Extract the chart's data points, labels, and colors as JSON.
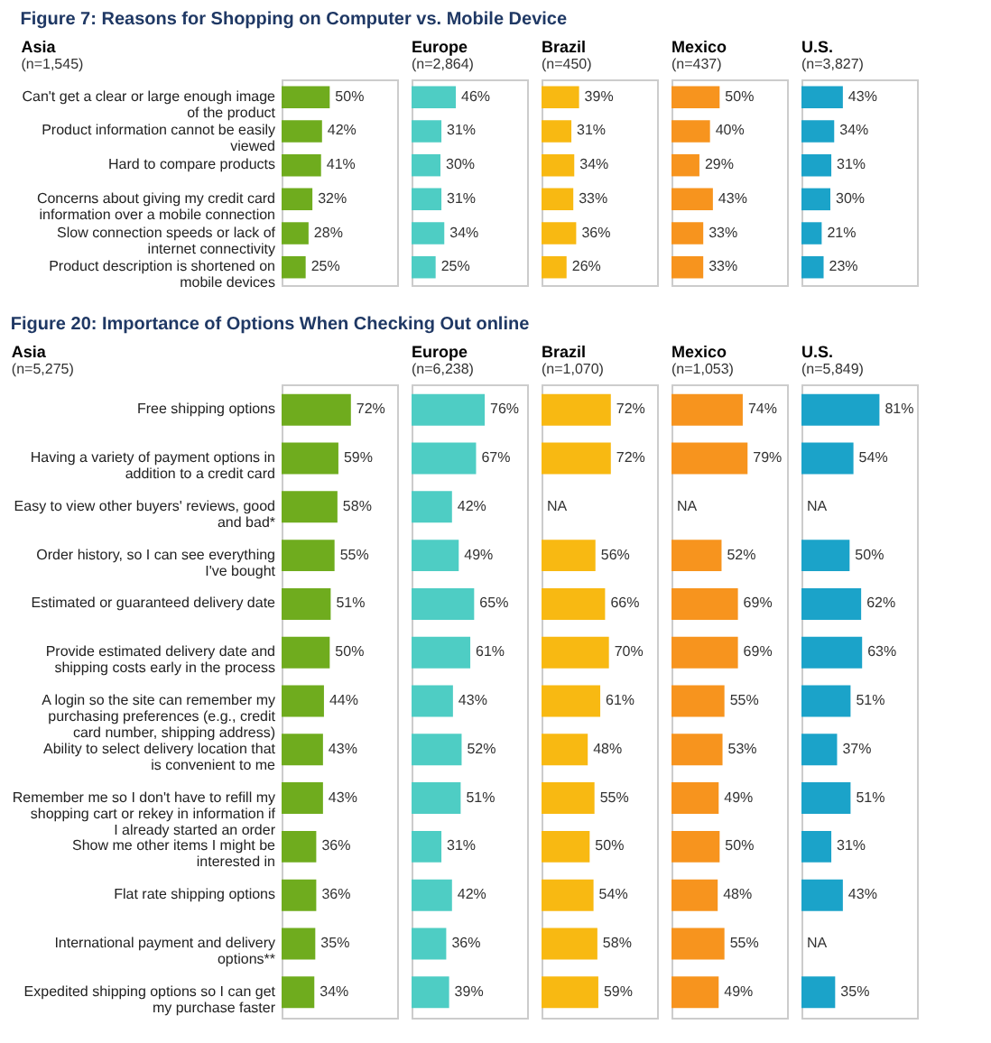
{
  "chart_data": [
    {
      "type": "bar",
      "orientation": "horizontal",
      "annotations": [
        "Figure 7: Reasons for Shopping on Computer vs. Mobile Device"
      ],
      "title": "Asia",
      "subtitle": "(n=1,545)",
      "tick_labels": "y",
      "xlim": [
        0,
        120
      ],
      "color": "#6fac1e",
      "categories": [
        "Can't get a clear or large enough image of the product",
        "Product information cannot be easily viewed",
        "Hard to compare products",
        "Concerns about giving my credit card information over a mobile connection",
        "Slow connection speeds or lack of internet connectivity",
        "Product description is shortened on mobile devices"
      ],
      "values": [
        50,
        42,
        41,
        32,
        28,
        25
      ],
      "value_labels": [
        "50%",
        "42%",
        "41%",
        "32%",
        "28%",
        "25%"
      ]
    },
    {
      "type": "bar",
      "orientation": "horizontal",
      "title": "Europe",
      "subtitle": "(n=2,864)",
      "tick_labels": false,
      "xlim": [
        0,
        120
      ],
      "color": "#4ecdc4",
      "categories": [
        null,
        null,
        null,
        null,
        null,
        null
      ],
      "values": [
        46,
        31,
        30,
        31,
        34,
        25
      ],
      "value_labels": [
        "46%",
        "31%",
        "30%",
        "31%",
        "34%",
        "25%"
      ]
    },
    {
      "type": "bar",
      "orientation": "horizontal",
      "title": "Brazil",
      "subtitle": "(n=450)",
      "tick_labels": false,
      "xlim": [
        0,
        120
      ],
      "color": "#f8b912",
      "categories": [
        null,
        null,
        null,
        null,
        null,
        null
      ],
      "values": [
        39,
        31,
        34,
        33,
        36,
        26
      ],
      "value_labels": [
        "39%",
        "31%",
        "34%",
        "33%",
        "36%",
        "26%"
      ]
    },
    {
      "type": "bar",
      "orientation": "horizontal",
      "title": "Mexico",
      "subtitle": "(n=437)",
      "tick_labels": false,
      "xlim": [
        0,
        120
      ],
      "color": "#f7941e",
      "categories": [
        null,
        null,
        null,
        null,
        null,
        null
      ],
      "values": [
        50,
        40,
        29,
        43,
        33,
        33
      ],
      "value_labels": [
        "50%",
        "40%",
        "29%",
        "43%",
        "33%",
        "33%"
      ]
    },
    {
      "type": "bar",
      "orientation": "horizontal",
      "title": "U.S.",
      "subtitle": "(n=3,827)",
      "tick_labels": false,
      "xlim": [
        0,
        120
      ],
      "color": "#1ba3c9",
      "categories": [
        null,
        null,
        null,
        null,
        null,
        null
      ],
      "values": [
        43,
        34,
        31,
        30,
        21,
        23
      ],
      "value_labels": [
        "43%",
        "34%",
        "31%",
        "30%",
        "21%",
        "23%"
      ]
    },
    {
      "type": "bar",
      "orientation": "horizontal",
      "annotations": [
        "Figure 20: Importance of Options When Checking Out online"
      ],
      "title": "Asia",
      "subtitle": "(n=5,275)",
      "tick_labels": "y",
      "xlim": [
        0,
        120
      ],
      "color": "#6fac1e",
      "categories": [
        "Free shipping options",
        "Having a variety of payment options in addition to a credit card",
        "Easy to view other buyers' reviews, good and bad*",
        "Order history, so I can see everything I've bought",
        "Estimated or guaranteed delivery date",
        "Provide estimated delivery date and shipping costs early in the process",
        "A login so the site can remember my purchasing preferences (e.g., credit card number, shipping address)",
        "Ability to select delivery location that is convenient to me",
        "Remember me so I don't have to refill my shopping cart or rekey in information if I already started an order",
        "Show me other items I might be interested in",
        "Flat rate shipping options",
        "International payment and delivery options**",
        "Expedited shipping options so I can get my purchase faster"
      ],
      "values": [
        72,
        59,
        58,
        55,
        51,
        50,
        44,
        43,
        43,
        36,
        36,
        35,
        34
      ],
      "value_labels": [
        "72%",
        "59%",
        "58%",
        "55%",
        "51%",
        "50%",
        "44%",
        "43%",
        "43%",
        "36%",
        "36%",
        "35%",
        "34%"
      ]
    },
    {
      "type": "bar",
      "orientation": "horizontal",
      "title": "Europe",
      "subtitle": "(n=6,238)",
      "tick_labels": false,
      "xlim": [
        0,
        120
      ],
      "color": "#4ecdc4",
      "categories": [
        null,
        null,
        null,
        null,
        null,
        null,
        null,
        null,
        null,
        null,
        null,
        null,
        null
      ],
      "values": [
        76,
        67,
        42,
        49,
        65,
        61,
        43,
        52,
        51,
        31,
        42,
        36,
        39
      ],
      "value_labels": [
        "76%",
        "67%",
        "42%",
        "49%",
        "65%",
        "61%",
        "43%",
        "52%",
        "51%",
        "31%",
        "42%",
        "36%",
        "39%"
      ]
    },
    {
      "type": "bar",
      "orientation": "horizontal",
      "title": "Brazil",
      "subtitle": "(n=1,070)",
      "tick_labels": false,
      "xlim": [
        0,
        120
      ],
      "color": "#f8b912",
      "categories": [
        null,
        null,
        null,
        null,
        null,
        null,
        null,
        null,
        null,
        null,
        null,
        null,
        null
      ],
      "values": [
        72,
        72,
        null,
        56,
        66,
        70,
        61,
        48,
        55,
        50,
        54,
        58,
        59
      ],
      "value_labels": [
        "72%",
        "72%",
        "NA",
        "56%",
        "66%",
        "70%",
        "61%",
        "48%",
        "55%",
        "50%",
        "54%",
        "58%",
        "59%"
      ]
    },
    {
      "type": "bar",
      "orientation": "horizontal",
      "title": "Mexico",
      "subtitle": "(n=1,053)",
      "tick_labels": false,
      "xlim": [
        0,
        120
      ],
      "color": "#f7941e",
      "categories": [
        null,
        null,
        null,
        null,
        null,
        null,
        null,
        null,
        null,
        null,
        null,
        null,
        null
      ],
      "values": [
        74,
        79,
        null,
        52,
        69,
        69,
        55,
        53,
        49,
        50,
        48,
        55,
        49
      ],
      "value_labels": [
        "74%",
        "79%",
        "NA",
        "52%",
        "69%",
        "69%",
        "55%",
        "53%",
        "49%",
        "50%",
        "48%",
        "55%",
        "49%"
      ]
    },
    {
      "type": "bar",
      "orientation": "horizontal",
      "title": "U.S.",
      "subtitle": "(n=5,849)",
      "tick_labels": false,
      "xlim": [
        0,
        120
      ],
      "color": "#1ba3c9",
      "categories": [
        null,
        null,
        null,
        null,
        null,
        null,
        null,
        null,
        null,
        null,
        null,
        null,
        null
      ],
      "values": [
        81,
        54,
        null,
        50,
        62,
        63,
        51,
        37,
        51,
        31,
        43,
        null,
        35
      ],
      "value_labels": [
        "81%",
        "54%",
        "NA",
        "50%",
        "62%",
        "63%",
        "51%",
        "37%",
        "51%",
        "31%",
        "43%",
        "NA",
        "35%"
      ]
    }
  ]
}
